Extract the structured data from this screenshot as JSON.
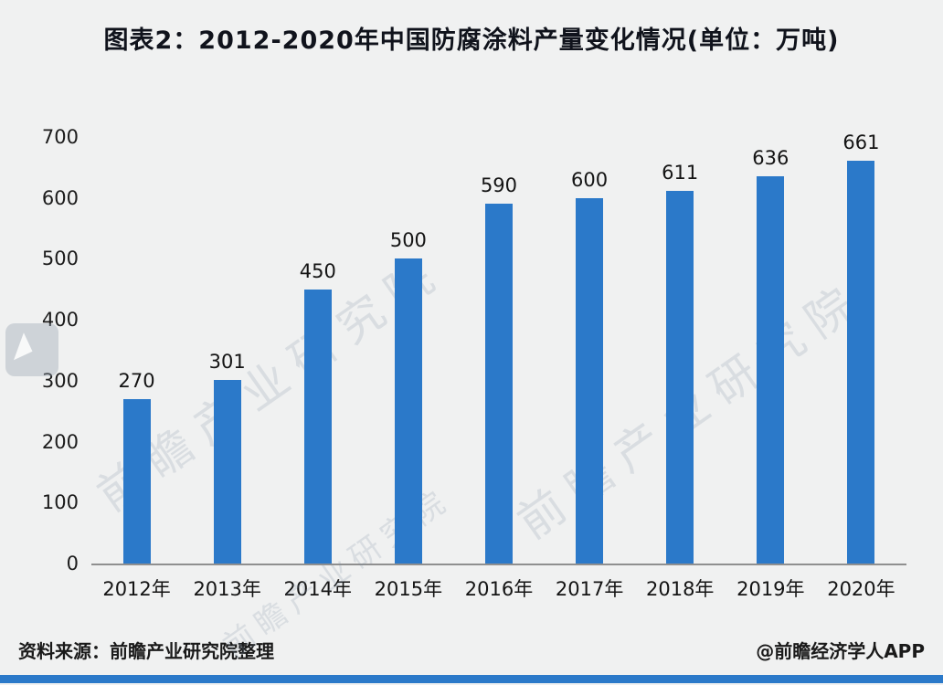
{
  "page": {
    "background": "#f0f1f1",
    "accent_blue": "#2b79c9"
  },
  "title": "图表2：2012-2020年中国防腐涂料产量变化情况(单位：万吨)",
  "footer": {
    "source": "资料来源：前瞻产业研究院整理",
    "credit": "@前瞻经济学人APP"
  },
  "watermark": {
    "text": "前瞻产业研究院",
    "logo": "qianzhan-logo"
  },
  "chart_data": {
    "type": "bar",
    "title": "图表2：2012-2020年中国防腐涂料产量变化情况(单位：万吨)",
    "categories": [
      "2012年",
      "2013年",
      "2014年",
      "2015年",
      "2016年",
      "2017年",
      "2018年",
      "2019年",
      "2020年"
    ],
    "values": [
      270,
      301,
      450,
      500,
      590,
      600,
      611,
      636,
      661
    ],
    "xlabel": "",
    "ylabel": "",
    "ylim": [
      0,
      700
    ],
    "yticks": [
      0,
      100,
      200,
      300,
      400,
      500,
      600,
      700
    ],
    "bar_color": "#2b79c9",
    "grid": false,
    "legend": false
  }
}
